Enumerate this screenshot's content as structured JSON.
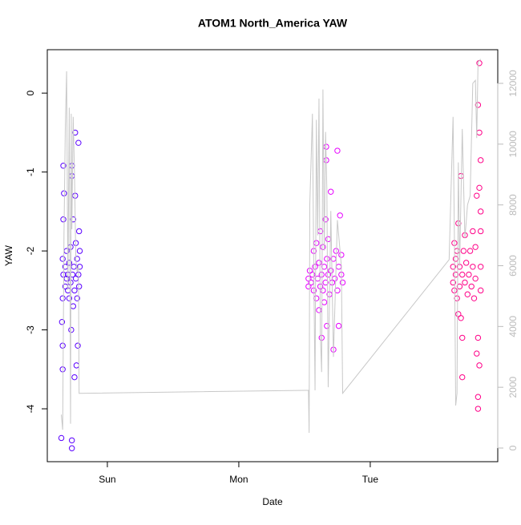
{
  "chart_data": {
    "type": "scatter",
    "title": "ATOM1 North_America YAW",
    "x_label": "Date",
    "y_label": "YAW",
    "xlim": [
      -0.457,
      2.97
    ],
    "xticks": [
      {
        "value": 0,
        "label": "Sun"
      },
      {
        "value": 1,
        "label": "Mon"
      },
      {
        "value": 2,
        "label": "Tue"
      }
    ],
    "ylim": [
      -4.67,
      0.55
    ],
    "yticks": [
      0,
      -1,
      -2,
      -3,
      -4
    ],
    "y2lim": [
      -449,
      13108
    ],
    "y2ticks": [
      0,
      2000,
      4000,
      6000,
      8000,
      10000,
      12000
    ],
    "series": [
      {
        "type": "scatter",
        "color": "#5a00ff",
        "x": [
          -0.35,
          -0.34,
          -0.34,
          -0.345,
          -0.34,
          -0.335,
          -0.34,
          -0.335,
          -0.33,
          -0.335,
          -0.32,
          -0.32,
          -0.31,
          -0.31,
          -0.3,
          -0.3,
          -0.29,
          -0.29,
          -0.28,
          -0.28,
          -0.275,
          -0.27,
          -0.27,
          -0.27,
          -0.27,
          -0.265,
          -0.26,
          -0.26,
          -0.255,
          -0.25,
          -0.25,
          -0.245,
          -0.245,
          -0.24,
          -0.24,
          -0.235,
          -0.23,
          -0.23,
          -0.225,
          -0.22,
          -0.22,
          -0.215,
          -0.215,
          -0.21,
          -0.21
        ],
        "values": [
          -4.37,
          -3.5,
          -3.2,
          -2.9,
          -2.6,
          -2.3,
          -2.1,
          -1.6,
          -1.27,
          -0.92,
          -2.45,
          -2.2,
          -2.35,
          -2.0,
          -2.5,
          -2.3,
          -2.15,
          -2.6,
          -2.4,
          -1.95,
          -3.0,
          -4.5,
          -4.4,
          -0.92,
          -1.05,
          -2.3,
          -2.7,
          -1.6,
          -2.2,
          -3.6,
          -2.5,
          -0.5,
          -1.3,
          -2.35,
          -1.9,
          -3.45,
          -2.1,
          -2.6,
          -3.2,
          -0.63,
          -2.3,
          -1.75,
          -2.45,
          -2.2,
          -2.0
        ]
      },
      {
        "type": "scatter",
        "color": "#e600ff",
        "x": [
          1.53,
          1.53,
          1.54,
          1.55,
          1.56,
          1.57,
          1.57,
          1.58,
          1.59,
          1.59,
          1.6,
          1.61,
          1.61,
          1.62,
          1.62,
          1.63,
          1.63,
          1.64,
          1.64,
          1.65,
          1.65,
          1.66,
          1.66,
          1.665,
          1.665,
          1.67,
          1.67,
          1.68,
          1.68,
          1.69,
          1.7,
          1.7,
          1.71,
          1.72,
          1.72,
          1.73,
          1.74,
          1.75,
          1.75,
          1.76,
          1.76,
          1.77,
          1.78,
          1.78,
          1.79
        ],
        "values": [
          -2.35,
          -2.45,
          -2.25,
          -2.4,
          -2.3,
          -2.0,
          -2.5,
          -2.2,
          -2.6,
          -1.9,
          -2.35,
          -2.75,
          -2.15,
          -1.75,
          -2.45,
          -2.3,
          -3.1,
          -2.5,
          -1.95,
          -2.2,
          -2.65,
          -1.6,
          -2.4,
          -0.68,
          -0.85,
          -2.1,
          -2.95,
          -2.3,
          -1.85,
          -2.55,
          -2.25,
          -1.25,
          -2.4,
          -3.25,
          -2.1,
          -2.35,
          -2.0,
          -2.5,
          -0.73,
          -2.2,
          -2.95,
          -1.55,
          -2.3,
          -2.05,
          -2.4
        ]
      },
      {
        "type": "scatter",
        "color": "#ff0088",
        "x": [
          2.63,
          2.63,
          2.64,
          2.64,
          2.65,
          2.65,
          2.66,
          2.66,
          2.67,
          2.67,
          2.68,
          2.68,
          2.69,
          2.69,
          2.7,
          2.7,
          2.7,
          2.71,
          2.72,
          2.72,
          2.73,
          2.74,
          2.75,
          2.76,
          2.77,
          2.78,
          2.78,
          2.79,
          2.8,
          2.8,
          2.81,
          2.81,
          2.82,
          2.82,
          2.82,
          2.82,
          2.83,
          2.83,
          2.83,
          2.83,
          2.84,
          2.84,
          2.84,
          2.84,
          2.84
        ],
        "values": [
          -2.2,
          -2.4,
          -1.9,
          -2.5,
          -2.1,
          -2.3,
          -2.0,
          -2.6,
          -2.8,
          -1.65,
          -2.2,
          -2.45,
          -1.05,
          -2.85,
          -3.6,
          -2.3,
          -3.1,
          -2.0,
          -2.4,
          -1.8,
          -2.15,
          -2.55,
          -2.3,
          -2.0,
          -2.45,
          -1.75,
          -2.2,
          -2.6,
          -1.95,
          -2.35,
          -3.3,
          -1.3,
          -0.15,
          -3.85,
          -4.0,
          -3.1,
          0.38,
          -0.5,
          -1.2,
          -3.45,
          -0.85,
          -1.5,
          -2.5,
          -1.75,
          -2.2
        ]
      },
      {
        "type": "line",
        "axis": "y2",
        "color": "#c8c8c8",
        "x": [
          -0.35,
          -0.34,
          -0.33,
          -0.32,
          -0.31,
          -0.3,
          -0.29,
          -0.28,
          -0.275,
          -0.27,
          -0.26,
          -0.25,
          -0.24,
          -0.23,
          -0.22,
          -0.215,
          1.53,
          1.535,
          1.54,
          1.56,
          1.57,
          1.58,
          1.59,
          1.6,
          1.61,
          1.62,
          1.63,
          1.64,
          1.65,
          1.66,
          1.67,
          1.68,
          1.7,
          1.72,
          1.75,
          1.78,
          1.79,
          2.6,
          2.63,
          2.64,
          2.65,
          2.66,
          2.67,
          2.68,
          2.7,
          2.72,
          2.74,
          2.76,
          2.78,
          2.8,
          2.81,
          2.82,
          2.84
        ],
        "values": [
          1100,
          600,
          7000,
          10500,
          12400,
          5200,
          11200,
          800,
          11000,
          7200,
          10900,
          9000,
          6200,
          5800,
          6000,
          1800,
          1900,
          500,
          8000,
          11000,
          6000,
          1900,
          10800,
          7000,
          11500,
          3800,
          2500,
          11800,
          6500,
          10400,
          8500,
          2000,
          7800,
          3000,
          7500,
          6000,
          1800,
          6200,
          10900,
          7000,
          1400,
          1800,
          9400,
          6000,
          10500,
          6900,
          8000,
          8300,
          12000,
          12100,
          10200,
          12700,
          12800
        ]
      }
    ]
  }
}
